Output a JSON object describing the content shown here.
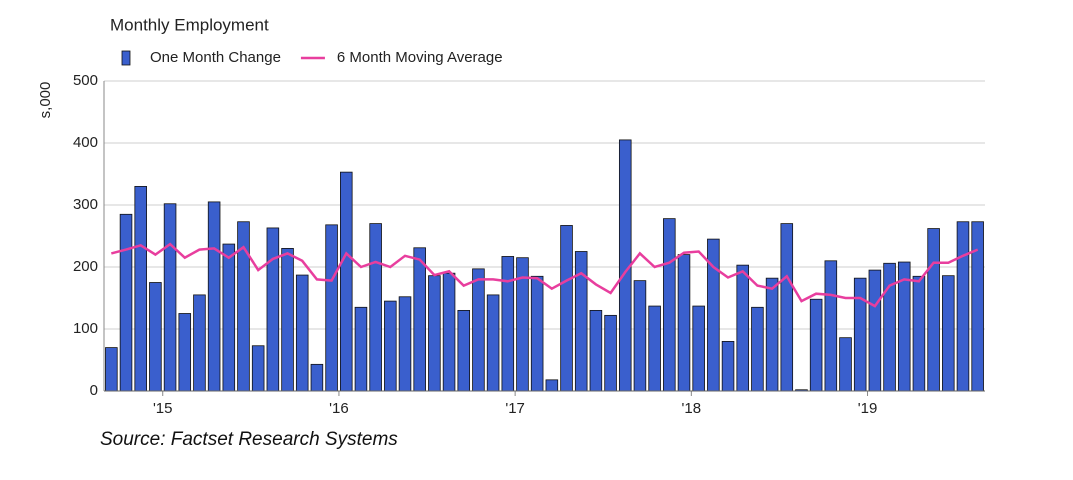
{
  "chart_data": {
    "type": "bar",
    "title": "Monthly Employment",
    "y_label": "s,000",
    "source": "Source: Factset Research Systems",
    "categories": [
      null,
      null,
      null,
      null,
      "'15",
      null,
      null,
      null,
      null,
      null,
      null,
      null,
      null,
      null,
      null,
      null,
      "'16",
      null,
      null,
      null,
      null,
      null,
      null,
      null,
      null,
      null,
      null,
      null,
      "'17",
      null,
      null,
      null,
      null,
      null,
      null,
      null,
      null,
      null,
      null,
      null,
      "'18",
      null,
      null,
      null,
      null,
      null,
      null,
      null,
      null,
      null,
      null,
      null,
      "'19",
      null,
      null,
      null,
      null,
      null,
      null,
      null
    ],
    "series": [
      {
        "name": "One Month Change",
        "color": "#3a5fcd",
        "type": "bar",
        "values": [
          70,
          285,
          330,
          175,
          302,
          125,
          155,
          305,
          237,
          273,
          73,
          263,
          230,
          187,
          43,
          268,
          353,
          135,
          270,
          145,
          152,
          231,
          186,
          190,
          130,
          197,
          155,
          217,
          215,
          185,
          18,
          267,
          225,
          130,
          122,
          405,
          178,
          137,
          278,
          220,
          137,
          245,
          80,
          203,
          135,
          182,
          270,
          2,
          148,
          210,
          86,
          182,
          195,
          206,
          208,
          185,
          262,
          186,
          273,
          273
        ]
      },
      {
        "name": "6 Month Moving Average",
        "color": "#e83e9e",
        "type": "line",
        "values": [
          222,
          228,
          235,
          220,
          237,
          215,
          228,
          230,
          215,
          232,
          195,
          213,
          222,
          210,
          180,
          178,
          222,
          200,
          208,
          200,
          218,
          212,
          187,
          193,
          170,
          180,
          180,
          177,
          183,
          182,
          165,
          178,
          190,
          172,
          158,
          192,
          222,
          200,
          207,
          223,
          225,
          200,
          183,
          193,
          170,
          165,
          185,
          145,
          157,
          155,
          150,
          150,
          137,
          170,
          180,
          177,
          207,
          207,
          218,
          228
        ]
      }
    ],
    "ylim": [
      0,
      500
    ],
    "yticks": [
      0,
      100,
      200,
      300,
      400,
      500
    ],
    "grid": true,
    "legend": "top"
  }
}
